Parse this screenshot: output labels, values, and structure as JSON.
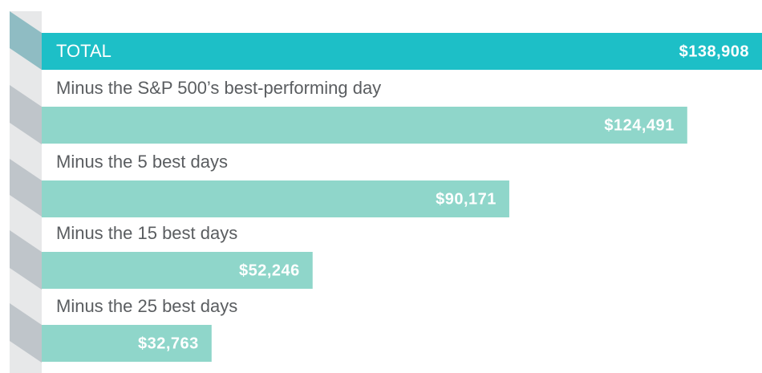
{
  "chart_data": {
    "type": "bar",
    "orientation": "horizontal",
    "categories": [
      "TOTAL",
      "Minus the S&P 500’s best-performing day",
      "Minus the 5 best days",
      "Minus the 15 best days",
      "Minus the 25 best days"
    ],
    "values": [
      138908,
      124491,
      90171,
      52246,
      32763
    ],
    "value_labels": [
      "$138,908",
      "$124,491",
      "$90,171",
      "$52,246",
      "$32,763"
    ],
    "colors": [
      "#1dbfc7",
      "#8fd6ca",
      "#8fd6ca",
      "#8fd6ca",
      "#8fd6ca"
    ]
  }
}
